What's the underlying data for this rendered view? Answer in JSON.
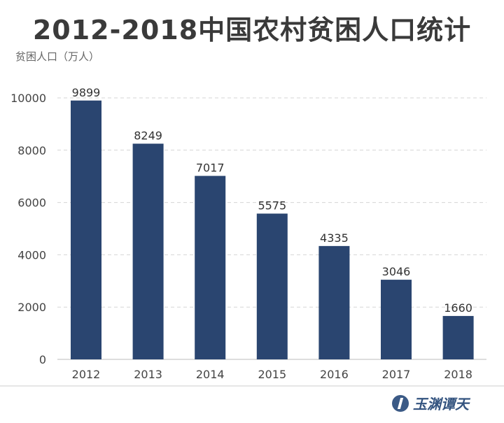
{
  "chart_data": {
    "type": "bar",
    "title": "2012-2018中国农村贫困人口统计",
    "ylabel": "贫困人口（万人）",
    "xlabel": "",
    "categories": [
      "2012",
      "2013",
      "2014",
      "2015",
      "2016",
      "2017",
      "2018"
    ],
    "values": [
      9899,
      8249,
      7017,
      5575,
      4335,
      3046,
      1660
    ],
    "ylim": [
      0,
      10000
    ],
    "yticks": [
      0,
      2000,
      4000,
      6000,
      8000,
      10000
    ],
    "grid": true,
    "bar_color": "#2a4570"
  },
  "logo": {
    "text": "玉渊谭天"
  }
}
